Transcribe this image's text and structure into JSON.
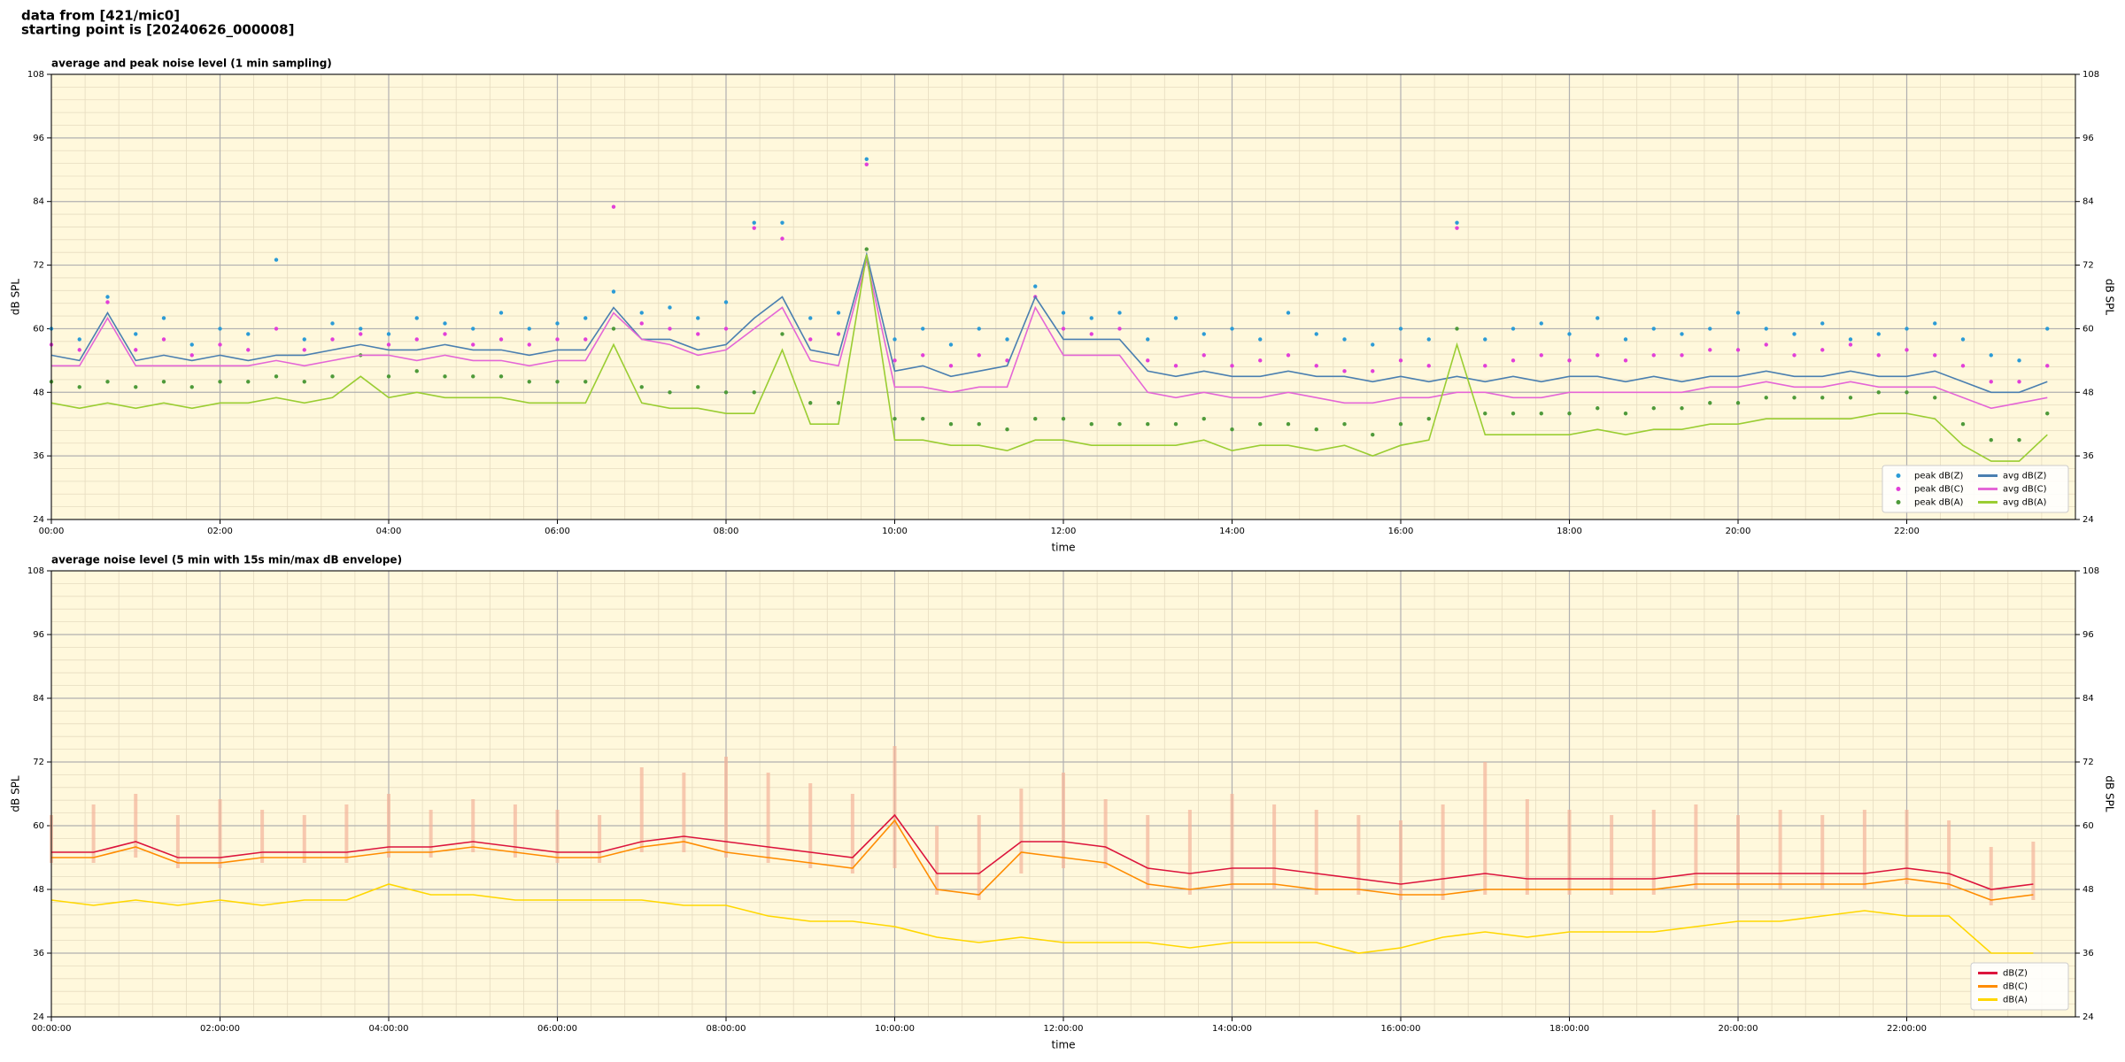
{
  "header": {
    "line1": "data from [421/mic0]",
    "line2": "starting point is [20240626_000008]"
  },
  "chart_data": [
    {
      "type": "line",
      "title": "average and peak noise level (1 min sampling)",
      "xlabel": "time",
      "ylabel": "dB SPL",
      "y2label": "dB SPL",
      "x": [
        0,
        20,
        40,
        60,
        80,
        100,
        120,
        140,
        160,
        180,
        200,
        220,
        240,
        260,
        280,
        300,
        320,
        340,
        360,
        380,
        400,
        420,
        440,
        460,
        480,
        500,
        520,
        540,
        560,
        580,
        600,
        620,
        640,
        660,
        680,
        700,
        720,
        740,
        760,
        780,
        800,
        820,
        840,
        860,
        880,
        900,
        920,
        940,
        960,
        980,
        1000,
        1020,
        1040,
        1060,
        1080,
        1100,
        1120,
        1140,
        1160,
        1180,
        1200,
        1220,
        1240,
        1260,
        1280,
        1300,
        1320,
        1340,
        1360,
        1380,
        1400,
        1420
      ],
      "xlim": [
        0,
        1440
      ],
      "xticks": [
        {
          "value": 0,
          "label": "00:00"
        },
        {
          "value": 120,
          "label": "02:00"
        },
        {
          "value": 240,
          "label": "04:00"
        },
        {
          "value": 360,
          "label": "06:00"
        },
        {
          "value": 480,
          "label": "08:00"
        },
        {
          "value": 600,
          "label": "10:00"
        },
        {
          "value": 720,
          "label": "12:00"
        },
        {
          "value": 840,
          "label": "14:00"
        },
        {
          "value": 960,
          "label": "16:00"
        },
        {
          "value": 1080,
          "label": "18:00"
        },
        {
          "value": 1200,
          "label": "20:00"
        },
        {
          "value": 1320,
          "label": "22:00"
        }
      ],
      "ylim": [
        24,
        108
      ],
      "yticks": [
        24,
        36,
        48,
        60,
        72,
        84,
        96,
        108
      ],
      "y2lim": [
        24,
        108
      ],
      "y2ticks": [
        24,
        36,
        48,
        60,
        72,
        84,
        96,
        108
      ],
      "grid": true,
      "minor_grid": true,
      "background": "#fff8dc",
      "legend": "lower right",
      "legend_columns": 2,
      "series": [
        {
          "name": "peak dB(Z)",
          "type": "scatter",
          "color": "#2b9bd6",
          "values": [
            60,
            58,
            66,
            59,
            62,
            57,
            60,
            59,
            73,
            58,
            61,
            60,
            59,
            62,
            61,
            60,
            63,
            60,
            61,
            62,
            67,
            63,
            64,
            62,
            65,
            80,
            80,
            62,
            63,
            92,
            58,
            60,
            57,
            60,
            58,
            68,
            63,
            62,
            63,
            58,
            62,
            59,
            60,
            58,
            63,
            59,
            58,
            57,
            60,
            58,
            80,
            58,
            60,
            61,
            59,
            62,
            58,
            60,
            59,
            60,
            63,
            60,
            59,
            61,
            58,
            59,
            60,
            61,
            58,
            55,
            54,
            60
          ]
        },
        {
          "name": "peak dB(C)",
          "type": "scatter",
          "color": "#e23fd8",
          "values": [
            57,
            56,
            65,
            56,
            58,
            55,
            57,
            56,
            60,
            56,
            58,
            59,
            57,
            58,
            59,
            57,
            58,
            57,
            58,
            58,
            83,
            61,
            60,
            59,
            60,
            79,
            77,
            58,
            59,
            91,
            54,
            55,
            53,
            55,
            54,
            66,
            60,
            59,
            60,
            54,
            53,
            55,
            53,
            54,
            55,
            53,
            52,
            52,
            54,
            53,
            79,
            53,
            54,
            55,
            54,
            55,
            54,
            55,
            55,
            56,
            56,
            57,
            55,
            56,
            57,
            55,
            56,
            55,
            53,
            50,
            50,
            53
          ]
        },
        {
          "name": "peak dB(A)",
          "type": "scatter",
          "color": "#4e9a3a",
          "values": [
            50,
            49,
            50,
            49,
            50,
            49,
            50,
            50,
            51,
            50,
            51,
            55,
            51,
            52,
            51,
            51,
            51,
            50,
            50,
            50,
            60,
            49,
            48,
            49,
            48,
            48,
            59,
            46,
            46,
            75,
            43,
            43,
            42,
            42,
            41,
            43,
            43,
            42,
            42,
            42,
            42,
            43,
            41,
            42,
            42,
            41,
            42,
            40,
            42,
            43,
            60,
            44,
            44,
            44,
            44,
            45,
            44,
            45,
            45,
            46,
            46,
            47,
            47,
            47,
            47,
            48,
            48,
            47,
            42,
            39,
            39,
            44
          ]
        },
        {
          "name": "avg dB(Z)",
          "type": "line",
          "color": "#4a7fb0",
          "values": [
            55,
            54,
            63,
            54,
            55,
            54,
            55,
            54,
            55,
            55,
            56,
            57,
            56,
            56,
            57,
            56,
            56,
            55,
            56,
            56,
            64,
            58,
            58,
            56,
            57,
            62,
            66,
            56,
            55,
            74,
            52,
            53,
            51,
            52,
            53,
            66,
            58,
            58,
            58,
            52,
            51,
            52,
            51,
            51,
            52,
            51,
            51,
            50,
            51,
            50,
            51,
            50,
            51,
            50,
            51,
            51,
            50,
            51,
            50,
            51,
            51,
            52,
            51,
            51,
            52,
            51,
            51,
            52,
            50,
            48,
            48,
            50
          ]
        },
        {
          "name": "avg dB(C)",
          "type": "line",
          "color": "#e466d6",
          "values": [
            53,
            53,
            62,
            53,
            53,
            53,
            53,
            53,
            54,
            53,
            54,
            55,
            55,
            54,
            55,
            54,
            54,
            53,
            54,
            54,
            63,
            58,
            57,
            55,
            56,
            60,
            64,
            54,
            53,
            73,
            49,
            49,
            48,
            49,
            49,
            64,
            55,
            55,
            55,
            48,
            47,
            48,
            47,
            47,
            48,
            47,
            46,
            46,
            47,
            47,
            48,
            48,
            47,
            47,
            48,
            48,
            48,
            48,
            48,
            49,
            49,
            50,
            49,
            49,
            50,
            49,
            49,
            49,
            47,
            45,
            46,
            47
          ]
        },
        {
          "name": "avg dB(A)",
          "type": "line",
          "color": "#9acd32",
          "values": [
            46,
            45,
            46,
            45,
            46,
            45,
            46,
            46,
            47,
            46,
            47,
            51,
            47,
            48,
            47,
            47,
            47,
            46,
            46,
            46,
            57,
            46,
            45,
            45,
            44,
            44,
            56,
            42,
            42,
            74,
            39,
            39,
            38,
            38,
            37,
            39,
            39,
            38,
            38,
            38,
            38,
            39,
            37,
            38,
            38,
            37,
            38,
            36,
            38,
            39,
            57,
            40,
            40,
            40,
            40,
            41,
            40,
            41,
            41,
            42,
            42,
            43,
            43,
            43,
            43,
            44,
            44,
            43,
            38,
            35,
            35,
            40
          ]
        }
      ]
    },
    {
      "type": "line",
      "title": "average noise level (5 min with 15s min/max dB envelope)",
      "xlabel": "time",
      "ylabel": "dB SPL",
      "y2label": "dB SPL",
      "x": [
        0,
        30,
        60,
        90,
        120,
        150,
        180,
        210,
        240,
        270,
        300,
        330,
        360,
        390,
        420,
        450,
        480,
        510,
        540,
        570,
        600,
        630,
        660,
        690,
        720,
        750,
        780,
        810,
        840,
        870,
        900,
        930,
        960,
        990,
        1020,
        1050,
        1080,
        1110,
        1140,
        1170,
        1200,
        1230,
        1260,
        1290,
        1320,
        1350,
        1380,
        1410
      ],
      "xlim": [
        0,
        1440
      ],
      "xticks": [
        {
          "value": 0,
          "label": "00:00:00"
        },
        {
          "value": 120,
          "label": "02:00:00"
        },
        {
          "value": 240,
          "label": "04:00:00"
        },
        {
          "value": 360,
          "label": "06:00:00"
        },
        {
          "value": 480,
          "label": "08:00:00"
        },
        {
          "value": 600,
          "label": "10:00:00"
        },
        {
          "value": 720,
          "label": "12:00:00"
        },
        {
          "value": 840,
          "label": "14:00:00"
        },
        {
          "value": 960,
          "label": "16:00:00"
        },
        {
          "value": 1080,
          "label": "18:00:00"
        },
        {
          "value": 1200,
          "label": "20:00:00"
        },
        {
          "value": 1320,
          "label": "22:00:00"
        }
      ],
      "ylim": [
        24,
        108
      ],
      "yticks": [
        24,
        36,
        48,
        60,
        72,
        84,
        96,
        108
      ],
      "y2lim": [
        24,
        108
      ],
      "y2ticks": [
        24,
        36,
        48,
        60,
        72,
        84,
        96,
        108
      ],
      "grid": true,
      "minor_grid": true,
      "background": "#fff8dc",
      "legend": "lower right",
      "legend_columns": 1,
      "series": [
        {
          "type": "envelope",
          "color": "#f4b39a",
          "values": [
            62,
            64,
            66,
            62,
            65,
            63,
            62,
            64,
            66,
            63,
            65,
            64,
            63,
            62,
            71,
            70,
            73,
            70,
            68,
            66,
            75,
            60,
            62,
            67,
            70,
            65,
            62,
            63,
            66,
            64,
            63,
            62,
            61,
            64,
            72,
            65,
            63,
            62,
            63,
            64,
            62,
            63,
            62,
            63,
            63,
            61,
            56,
            57
          ],
          "low": [
            53,
            53,
            54,
            52,
            52,
            53,
            53,
            53,
            54,
            54,
            55,
            54,
            53,
            53,
            55,
            55,
            54,
            53,
            52,
            51,
            52,
            47,
            46,
            51,
            52,
            52,
            48,
            47,
            48,
            48,
            47,
            47,
            46,
            46,
            47,
            47,
            47,
            47,
            47,
            48,
            48,
            48,
            48,
            48,
            49,
            48,
            45,
            46
          ]
        },
        {
          "name": "dB(Z)",
          "type": "line",
          "color": "#dc143c",
          "values": [
            55,
            55,
            57,
            54,
            54,
            55,
            55,
            55,
            56,
            56,
            57,
            56,
            55,
            55,
            57,
            58,
            57,
            56,
            55,
            54,
            62,
            51,
            51,
            57,
            57,
            56,
            52,
            51,
            52,
            52,
            51,
            50,
            49,
            50,
            51,
            50,
            50,
            50,
            50,
            51,
            51,
            51,
            51,
            51,
            52,
            51,
            48,
            49
          ]
        },
        {
          "name": "dB(C)",
          "type": "line",
          "color": "#ff8c00",
          "values": [
            54,
            54,
            56,
            53,
            53,
            54,
            54,
            54,
            55,
            55,
            56,
            55,
            54,
            54,
            56,
            57,
            55,
            54,
            53,
            52,
            61,
            48,
            47,
            55,
            54,
            53,
            49,
            48,
            49,
            49,
            48,
            48,
            47,
            47,
            48,
            48,
            48,
            48,
            48,
            49,
            49,
            49,
            49,
            49,
            50,
            49,
            46,
            47
          ]
        },
        {
          "name": "dB(A)",
          "type": "line",
          "color": "#ffd700",
          "values": [
            46,
            45,
            46,
            45,
            46,
            45,
            46,
            46,
            49,
            47,
            47,
            46,
            46,
            46,
            46,
            45,
            45,
            43,
            42,
            42,
            41,
            39,
            38,
            39,
            38,
            38,
            38,
            37,
            38,
            38,
            38,
            36,
            37,
            39,
            40,
            39,
            40,
            40,
            40,
            41,
            42,
            42,
            43,
            44,
            43,
            43,
            36,
            36
          ]
        }
      ]
    }
  ]
}
